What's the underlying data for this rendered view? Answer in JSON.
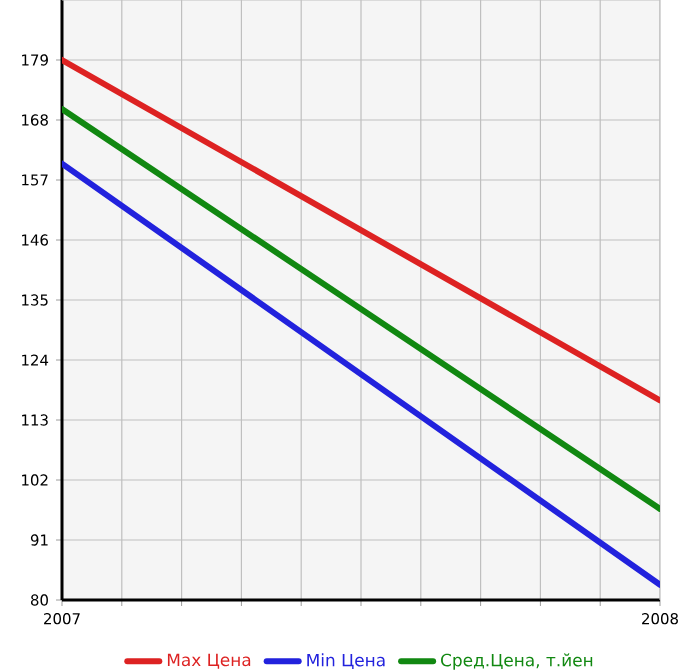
{
  "chart_data": {
    "type": "line",
    "x": [
      2007,
      2008
    ],
    "series": [
      {
        "name": "Max Цена",
        "color": "#dd2222",
        "values": [
          179,
          116.6
        ]
      },
      {
        "name": "Min Цена",
        "color": "#2222dd",
        "values": [
          160,
          82.8
        ]
      },
      {
        "name": "Сред.Цена, т.йен",
        "color": "#118811",
        "values": [
          170,
          96.7
        ]
      }
    ],
    "xlim": [
      2007,
      2008
    ],
    "xticks": [
      2007,
      {
        "value": 2007.1,
        "label": null
      },
      {
        "value": 2007.2,
        "label": null
      },
      {
        "value": 2007.3,
        "label": null
      },
      {
        "value": 2007.4,
        "label": null
      },
      {
        "value": 2007.5,
        "label": null
      },
      {
        "value": 2007.6,
        "label": null
      },
      {
        "value": 2007.7,
        "label": null
      },
      {
        "value": 2007.8,
        "label": null
      },
      {
        "value": 2007.9,
        "label": null
      },
      2008
    ],
    "ylim": [
      80,
      190
    ],
    "yticks": [
      80,
      91,
      102,
      113,
      124,
      135,
      146,
      157,
      168,
      179
    ],
    "grid": true,
    "legend": "bottom",
    "marker": "none",
    "line_style": "solid"
  }
}
